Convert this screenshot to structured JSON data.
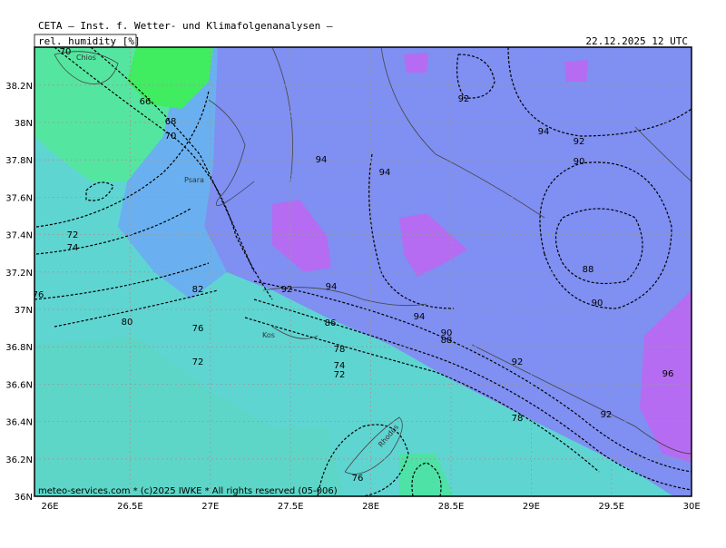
{
  "header": {
    "title": "CETA — Inst. f. Wetter- und Klimafolgenanalysen —",
    "variable": "rel. humidity [%]",
    "valid_time": "22.12.2025 12 UTC"
  },
  "map": {
    "lat_labels": [
      "36N",
      "36.2N",
      "36.4N",
      "36.6N",
      "36.8N",
      "37N",
      "37.2N",
      "37.4N",
      "37.6N",
      "37.8N",
      "38N",
      "38.2N"
    ],
    "lon_labels": [
      "26E",
      "26.5E",
      "27E",
      "27.5E",
      "28E",
      "28.5E",
      "29E",
      "29.5E",
      "30E"
    ],
    "contour_labels": [
      70,
      66,
      68,
      70,
      72,
      74,
      76,
      80,
      82,
      76,
      72,
      94,
      94,
      94,
      94,
      92,
      94,
      92,
      90,
      88,
      90,
      92,
      96,
      92,
      86,
      78,
      74,
      72,
      90,
      88,
      78,
      76,
      92
    ],
    "places": [
      "Chios",
      "Psara",
      "Kos",
      "Rhodos"
    ]
  },
  "footer": "meteo-services.com * (c)2025 IWKE * All rights reserved (05-006)"
}
